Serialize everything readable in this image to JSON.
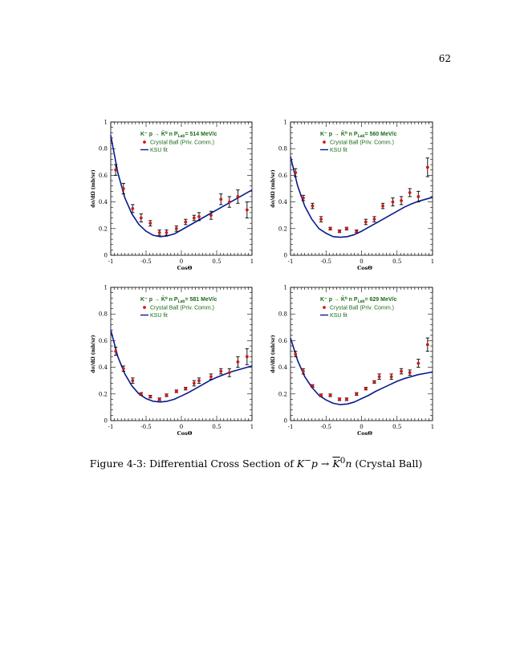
{
  "page": {
    "number": "62"
  },
  "caption": {
    "prefix": "Figure 4-3: Differential Cross Section of ",
    "math_a": "K",
    "sup_a": "−",
    "math_b": "p",
    "arrow": " → ",
    "math_c": "K",
    "sup_c": "0",
    "math_d": "n",
    "suffix": " (Crystal Ball)"
  },
  "colors": {
    "fit": "#0a1a8c",
    "point": "#d01818",
    "legend_text": "#1a6b1a",
    "axis": "#000000"
  },
  "chart_data": [
    {
      "type": "scatter",
      "title": "K⁻p → K̄⁰n   P_Lab = 514 MeV/c",
      "title_parts": {
        "reaction": "K⁻ p → K̄⁰ n",
        "plab_label": "P",
        "plab_sub": "Lab",
        "plab_value": "= 514 MeV/c"
      },
      "xlabel": "CosΘ",
      "ylabel": "dσ/dΩ (mb/sr)",
      "xlim": [
        -1,
        1
      ],
      "ylim": [
        0,
        1
      ],
      "xticks": [
        "-1",
        "-0.5",
        "0",
        "0.5",
        "1"
      ],
      "yticks": [
        "0",
        "0.2",
        "0.4",
        "0.6",
        "0.8",
        "1"
      ],
      "legend": [
        "Crystal Ball (Priv. Comm.)",
        "KSU fit"
      ],
      "series": [
        {
          "name": "Crystal Ball (Priv. Comm.)",
          "kind": "points",
          "x": [
            -0.93,
            -0.82,
            -0.69,
            -0.57,
            -0.44,
            -0.31,
            -0.21,
            -0.07,
            0.06,
            0.18,
            0.25,
            0.42,
            0.56,
            0.68,
            0.8,
            0.93
          ],
          "y": [
            0.64,
            0.5,
            0.35,
            0.28,
            0.24,
            0.17,
            0.17,
            0.2,
            0.25,
            0.28,
            0.29,
            0.3,
            0.42,
            0.4,
            0.44,
            0.34
          ],
          "err": [
            0.04,
            0.04,
            0.03,
            0.03,
            0.02,
            0.02,
            0.02,
            0.02,
            0.02,
            0.02,
            0.03,
            0.03,
            0.04,
            0.04,
            0.05,
            0.06
          ]
        },
        {
          "name": "KSU fit",
          "kind": "line",
          "x": [
            -1,
            -0.9,
            -0.8,
            -0.7,
            -0.6,
            -0.5,
            -0.4,
            -0.3,
            -0.2,
            -0.1,
            0,
            0.1,
            0.2,
            0.3,
            0.4,
            0.5,
            0.6,
            0.7,
            0.8,
            0.9,
            1
          ],
          "y": [
            0.9,
            0.62,
            0.43,
            0.31,
            0.23,
            0.18,
            0.15,
            0.14,
            0.145,
            0.16,
            0.19,
            0.22,
            0.25,
            0.28,
            0.31,
            0.34,
            0.37,
            0.4,
            0.43,
            0.46,
            0.49
          ]
        }
      ]
    },
    {
      "type": "scatter",
      "title": "K⁻p → K̄⁰n   P_Lab = 560 MeV/c",
      "title_parts": {
        "reaction": "K⁻ p → K̄⁰ n",
        "plab_label": "P",
        "plab_sub": "Lab",
        "plab_value": "= 560 MeV/c"
      },
      "xlabel": "CosΘ",
      "ylabel": "dσ/dΩ (mb/sr)",
      "xlim": [
        -1,
        1
      ],
      "ylim": [
        0,
        1
      ],
      "xticks": [
        "-1",
        "-0.5",
        "0",
        "0.5",
        "1"
      ],
      "yticks": [
        "0",
        "0.2",
        "0.4",
        "0.6",
        "0.8",
        "1"
      ],
      "legend": [
        "Crystal Ball (Priv. Comm.)",
        "KSU fit"
      ],
      "series": [
        {
          "name": "Crystal Ball (Priv. Comm.)",
          "kind": "points",
          "x": [
            -0.93,
            -0.82,
            -0.69,
            -0.57,
            -0.44,
            -0.31,
            -0.21,
            -0.07,
            0.06,
            0.18,
            0.3,
            0.44,
            0.56,
            0.68,
            0.8,
            0.93
          ],
          "y": [
            0.62,
            0.43,
            0.37,
            0.27,
            0.2,
            0.18,
            0.2,
            0.18,
            0.25,
            0.27,
            0.37,
            0.4,
            0.41,
            0.47,
            0.44,
            0.66
          ],
          "err": [
            0.03,
            0.02,
            0.02,
            0.02,
            0.01,
            0.01,
            0.01,
            0.01,
            0.02,
            0.02,
            0.02,
            0.03,
            0.03,
            0.03,
            0.04,
            0.07
          ]
        },
        {
          "name": "KSU fit",
          "kind": "line",
          "x": [
            -1,
            -0.9,
            -0.8,
            -0.7,
            -0.6,
            -0.5,
            -0.4,
            -0.3,
            -0.2,
            -0.1,
            0,
            0.1,
            0.2,
            0.3,
            0.4,
            0.5,
            0.6,
            0.7,
            0.8,
            0.9,
            1
          ],
          "y": [
            0.74,
            0.52,
            0.37,
            0.27,
            0.2,
            0.165,
            0.14,
            0.135,
            0.14,
            0.155,
            0.18,
            0.21,
            0.24,
            0.27,
            0.3,
            0.33,
            0.36,
            0.385,
            0.405,
            0.42,
            0.435
          ]
        }
      ]
    },
    {
      "type": "scatter",
      "title": "K⁻p → K̄⁰n   P_Lab = 581 MeV/c",
      "title_parts": {
        "reaction": "K⁻ p → K̄⁰ n",
        "plab_label": "P",
        "plab_sub": "Lab",
        "plab_value": "= 581 MeV/c"
      },
      "xlabel": "CosΘ",
      "ylabel": "dσ/dΩ (mb/sr)",
      "xlim": [
        -1,
        1
      ],
      "ylim": [
        0,
        1
      ],
      "xticks": [
        "-1",
        "-0.5",
        "0",
        "0.5",
        "1"
      ],
      "yticks": [
        "0",
        "0.2",
        "0.4",
        "0.6",
        "0.8",
        "1"
      ],
      "legend": [
        "Crystal Ball (Priv. Comm.)",
        "KSU fit"
      ],
      "series": [
        {
          "name": "Crystal Ball (Priv. Comm.)",
          "kind": "points",
          "x": [
            -0.93,
            -0.82,
            -0.69,
            -0.57,
            -0.44,
            -0.31,
            -0.21,
            -0.07,
            0.06,
            0.18,
            0.25,
            0.42,
            0.56,
            0.68,
            0.8,
            0.93
          ],
          "y": [
            0.52,
            0.39,
            0.3,
            0.2,
            0.18,
            0.16,
            0.19,
            0.22,
            0.24,
            0.28,
            0.3,
            0.33,
            0.37,
            0.36,
            0.44,
            0.48
          ],
          "err": [
            0.03,
            0.02,
            0.02,
            0.01,
            0.01,
            0.01,
            0.01,
            0.01,
            0.01,
            0.02,
            0.02,
            0.02,
            0.02,
            0.03,
            0.04,
            0.06
          ]
        },
        {
          "name": "KSU fit",
          "kind": "line",
          "x": [
            -1,
            -0.9,
            -0.8,
            -0.7,
            -0.6,
            -0.5,
            -0.4,
            -0.3,
            -0.2,
            -0.1,
            0,
            0.1,
            0.2,
            0.3,
            0.4,
            0.5,
            0.6,
            0.7,
            0.8,
            0.9,
            1
          ],
          "y": [
            0.68,
            0.48,
            0.35,
            0.26,
            0.2,
            0.165,
            0.145,
            0.14,
            0.145,
            0.16,
            0.185,
            0.21,
            0.24,
            0.27,
            0.3,
            0.325,
            0.345,
            0.365,
            0.38,
            0.395,
            0.41
          ]
        }
      ]
    },
    {
      "type": "scatter",
      "title": "K⁻p → K̄⁰n   P_Lab = 629 MeV/c",
      "title_parts": {
        "reaction": "K⁻ p → K̄⁰ n",
        "plab_label": "P",
        "plab_sub": "Lab",
        "plab_value": "= 629 MeV/c"
      },
      "xlabel": "CosΘ",
      "ylabel": "dσ/dΩ (mb/sr)",
      "xlim": [
        -1,
        1
      ],
      "ylim": [
        0,
        1
      ],
      "xticks": [
        "-1",
        "-0.5",
        "0",
        "0.5",
        "1"
      ],
      "yticks": [
        "0",
        "0.2",
        "0.4",
        "0.6",
        "0.8",
        "1"
      ],
      "legend": [
        "Crystal Ball (Priv. Comm.)",
        "KSU fit"
      ],
      "series": [
        {
          "name": "Crystal Ball (Priv. Comm.)",
          "kind": "points",
          "x": [
            -0.93,
            -0.82,
            -0.69,
            -0.57,
            -0.44,
            -0.31,
            -0.21,
            -0.07,
            0.06,
            0.18,
            0.25,
            0.42,
            0.56,
            0.68,
            0.8,
            0.93
          ],
          "y": [
            0.5,
            0.37,
            0.26,
            0.19,
            0.19,
            0.16,
            0.16,
            0.2,
            0.24,
            0.29,
            0.33,
            0.33,
            0.37,
            0.36,
            0.43,
            0.57
          ],
          "err": [
            0.02,
            0.02,
            0.01,
            0.01,
            0.01,
            0.01,
            0.01,
            0.01,
            0.01,
            0.01,
            0.02,
            0.02,
            0.02,
            0.02,
            0.03,
            0.05
          ]
        },
        {
          "name": "KSU fit",
          "kind": "line",
          "x": [
            -1,
            -0.9,
            -0.8,
            -0.7,
            -0.6,
            -0.5,
            -0.4,
            -0.3,
            -0.2,
            -0.1,
            0,
            0.1,
            0.2,
            0.3,
            0.4,
            0.5,
            0.6,
            0.7,
            0.8,
            0.9,
            1
          ],
          "y": [
            0.62,
            0.45,
            0.33,
            0.25,
            0.19,
            0.155,
            0.13,
            0.12,
            0.125,
            0.14,
            0.165,
            0.19,
            0.22,
            0.245,
            0.27,
            0.295,
            0.315,
            0.33,
            0.345,
            0.355,
            0.365
          ]
        }
      ]
    }
  ]
}
